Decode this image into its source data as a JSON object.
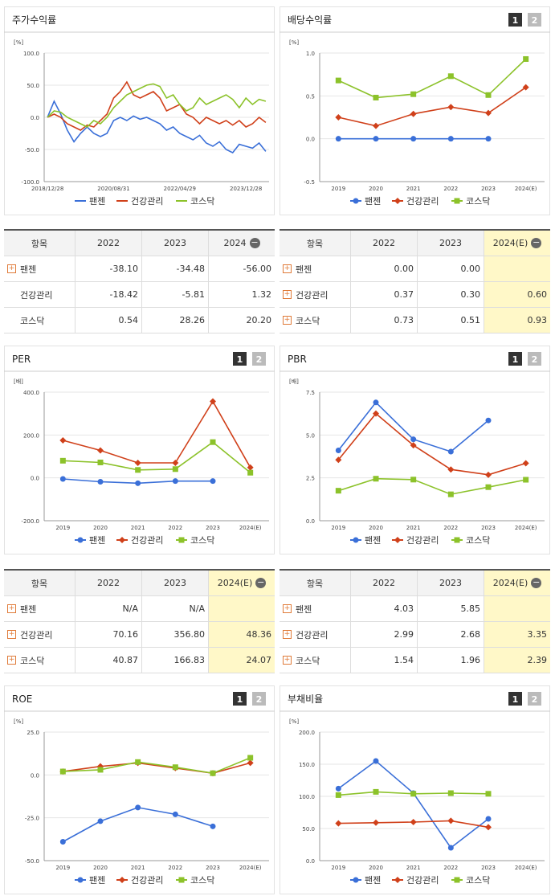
{
  "tab_buttons": [
    "1",
    "2"
  ],
  "chart_data": [
    {
      "type": "line",
      "title": "주가수익률",
      "unit": "[%]",
      "show_tabs": false,
      "grid": true,
      "categories": [
        "2018/12/28",
        null,
        null,
        null,
        null,
        null,
        null,
        null,
        null,
        null,
        "2020/08/31",
        null,
        null,
        null,
        null,
        null,
        null,
        null,
        null,
        null,
        "2022/04/29",
        null,
        null,
        null,
        null,
        null,
        null,
        null,
        null,
        null,
        "2023/12/28",
        null,
        null,
        null
      ],
      "ylim": [
        -100,
        100
      ],
      "yticks": [
        {
          "value": -100,
          "label": "-100.0"
        },
        {
          "value": -50,
          "label": "-50.0"
        },
        {
          "value": 0,
          "label": "0.0"
        },
        {
          "value": 50,
          "label": "50.0"
        },
        {
          "value": 100,
          "label": "100.0"
        }
      ],
      "series": [
        {
          "name": "팬젠",
          "color": "#3a6fd8",
          "values": [
            0,
            25,
            5,
            -20,
            -38,
            -25,
            -15,
            -25,
            -30,
            -25,
            -5,
            0,
            -5,
            2,
            -3,
            0,
            -5,
            -10,
            -20,
            -15,
            -25,
            -30,
            -35,
            -28,
            -40,
            -45,
            -38,
            -50,
            -55,
            -42,
            -45,
            -48,
            -40,
            -53
          ]
        },
        {
          "name": "건강관리",
          "color": "#d0401a",
          "values": [
            0,
            5,
            0,
            -10,
            -15,
            -20,
            -12,
            -15,
            -5,
            5,
            30,
            40,
            55,
            35,
            30,
            35,
            40,
            30,
            10,
            15,
            20,
            5,
            0,
            -10,
            0,
            -5,
            -10,
            -5,
            -12,
            -5,
            -15,
            -10,
            0,
            -8
          ]
        },
        {
          "name": "코스닥",
          "color": "#8cc22a",
          "values": [
            0,
            10,
            8,
            0,
            -5,
            -10,
            -15,
            -5,
            -10,
            0,
            15,
            25,
            35,
            40,
            45,
            50,
            52,
            48,
            30,
            35,
            20,
            10,
            15,
            30,
            20,
            25,
            30,
            35,
            28,
            15,
            30,
            20,
            28,
            25
          ]
        }
      ]
    },
    {
      "type": "line",
      "title": "배당수익률",
      "unit": "[%]",
      "show_tabs": true,
      "grid": true,
      "categories": [
        "2019",
        "2020",
        "2021",
        "2022",
        "2023",
        "2024(E)"
      ],
      "ylim": [
        -0.5,
        1.0
      ],
      "yticks": [
        {
          "value": -0.5,
          "label": "-0.5"
        },
        {
          "value": 0,
          "label": "0.0"
        },
        {
          "value": 0.5,
          "label": "0.5"
        },
        {
          "value": 1,
          "label": "1.0"
        }
      ],
      "series": [
        {
          "name": "팬젠",
          "color": "#3a6fd8",
          "marker": "circle",
          "values": [
            0,
            0,
            0,
            0,
            0,
            null
          ]
        },
        {
          "name": "건강관리",
          "color": "#d0401a",
          "marker": "diamond",
          "values": [
            0.25,
            0.15,
            0.29,
            0.37,
            0.3,
            0.6
          ]
        },
        {
          "name": "코스닥",
          "color": "#8cc22a",
          "marker": "square",
          "values": [
            0.68,
            0.48,
            0.52,
            0.73,
            0.51,
            0.93
          ]
        }
      ]
    },
    {
      "type": "line",
      "title": "PER",
      "unit": "[배]",
      "show_tabs": true,
      "grid": true,
      "categories": [
        "2019",
        "2020",
        "2021",
        "2022",
        "2023",
        "2024(E)"
      ],
      "ylim": [
        -200,
        400
      ],
      "yticks": [
        {
          "value": -200,
          "label": "-200.0"
        },
        {
          "value": 0,
          "label": "0.0"
        },
        {
          "value": 200,
          "label": "200.0"
        },
        {
          "value": 400,
          "label": "400.0"
        }
      ],
      "series": [
        {
          "name": "팬젠",
          "color": "#3a6fd8",
          "marker": "circle",
          "values": [
            -5,
            -18,
            -25,
            -15,
            -15,
            null
          ]
        },
        {
          "name": "건강관리",
          "color": "#d0401a",
          "marker": "diamond",
          "values": [
            175,
            128,
            70,
            70.16,
            356.8,
            48.36
          ]
        },
        {
          "name": "코스닥",
          "color": "#8cc22a",
          "marker": "square",
          "values": [
            80,
            72,
            37,
            40.87,
            166.83,
            24.07
          ]
        }
      ]
    },
    {
      "type": "line",
      "title": "PBR",
      "unit": "[배]",
      "show_tabs": true,
      "grid": true,
      "categories": [
        "2019",
        "2020",
        "2021",
        "2022",
        "2023",
        "2024(E)"
      ],
      "ylim": [
        0,
        7.5
      ],
      "yticks": [
        {
          "value": 0,
          "label": "0.0"
        },
        {
          "value": 2.5,
          "label": "2.5"
        },
        {
          "value": 5,
          "label": "5.0"
        },
        {
          "value": 7.5,
          "label": "7.5"
        }
      ],
      "series": [
        {
          "name": "팬젠",
          "color": "#3a6fd8",
          "marker": "circle",
          "values": [
            4.1,
            6.9,
            4.75,
            4.03,
            5.85,
            null
          ]
        },
        {
          "name": "건강관리",
          "color": "#d0401a",
          "marker": "diamond",
          "values": [
            3.55,
            6.25,
            4.4,
            2.99,
            2.68,
            3.35
          ]
        },
        {
          "name": "코스닥",
          "color": "#8cc22a",
          "marker": "square",
          "values": [
            1.75,
            2.45,
            2.4,
            1.54,
            1.96,
            2.39
          ]
        }
      ]
    },
    {
      "type": "line",
      "title": "ROE",
      "unit": "[%]",
      "show_tabs": true,
      "grid": true,
      "categories": [
        "2019",
        "2020",
        "2021",
        "2022",
        "2023",
        "2024(E)"
      ],
      "ylim": [
        -50,
        25
      ],
      "yticks": [
        {
          "value": -50,
          "label": "-50.0"
        },
        {
          "value": -25,
          "label": "-25.0"
        },
        {
          "value": 0,
          "label": "0.0"
        },
        {
          "value": 25,
          "label": "25.0"
        }
      ],
      "series": [
        {
          "name": "팬젠",
          "color": "#3a6fd8",
          "marker": "circle",
          "values": [
            -39,
            -27,
            -19,
            -23,
            -30,
            null
          ]
        },
        {
          "name": "건강관리",
          "color": "#d0401a",
          "marker": "diamond",
          "values": [
            2,
            5,
            7,
            4,
            1,
            7
          ]
        },
        {
          "name": "코스닥",
          "color": "#8cc22a",
          "marker": "square",
          "values": [
            2,
            3,
            7.5,
            4.5,
            1,
            10
          ]
        }
      ]
    },
    {
      "type": "line",
      "title": "부채비율",
      "unit": "[%]",
      "show_tabs": true,
      "grid": true,
      "categories": [
        "2019",
        "2020",
        "2021",
        "2022",
        "2023",
        "2024(E)"
      ],
      "ylim": [
        0,
        200
      ],
      "yticks": [
        {
          "value": 0,
          "label": "0.0"
        },
        {
          "value": 50,
          "label": "50.0"
        },
        {
          "value": 100,
          "label": "100.0"
        },
        {
          "value": 150,
          "label": "150.0"
        },
        {
          "value": 200,
          "label": "200.0"
        }
      ],
      "series": [
        {
          "name": "팬젠",
          "color": "#3a6fd8",
          "marker": "circle",
          "values": [
            112,
            155,
            105,
            20,
            65,
            null
          ]
        },
        {
          "name": "건강관리",
          "color": "#d0401a",
          "marker": "diamond",
          "values": [
            58,
            59,
            60,
            62,
            52,
            null
          ]
        },
        {
          "name": "코스닥",
          "color": "#8cc22a",
          "marker": "square",
          "values": [
            102,
            107,
            104,
            105,
            104,
            null
          ]
        }
      ]
    }
  ],
  "tables": [
    {
      "highlight_last_column": false,
      "columns": [
        "항목",
        "2022",
        "2023",
        "2024"
      ],
      "expandable": [
        true,
        false,
        false
      ],
      "rows": [
        [
          "팬젠",
          "-38.10",
          "-34.48",
          "-56.00"
        ],
        [
          "건강관리",
          "-18.42",
          "-5.81",
          "1.32"
        ],
        [
          "코스닥",
          "0.54",
          "28.26",
          "20.20"
        ]
      ]
    },
    {
      "highlight_last_column": true,
      "columns": [
        "항목",
        "2022",
        "2023",
        "2024(E)"
      ],
      "expandable": [
        true,
        true,
        true
      ],
      "rows": [
        [
          "팬젠",
          "0.00",
          "0.00",
          null
        ],
        [
          "건강관리",
          "0.37",
          "0.30",
          "0.60"
        ],
        [
          "코스닥",
          "0.73",
          "0.51",
          "0.93"
        ]
      ]
    },
    {
      "highlight_last_column": true,
      "columns": [
        "항목",
        "2022",
        "2023",
        "2024(E)"
      ],
      "expandable": [
        true,
        true,
        true
      ],
      "rows": [
        [
          "팬젠",
          "N/A",
          "N/A",
          null
        ],
        [
          "건강관리",
          "70.16",
          "356.80",
          "48.36"
        ],
        [
          "코스닥",
          "40.87",
          "166.83",
          "24.07"
        ]
      ]
    },
    {
      "highlight_last_column": true,
      "columns": [
        "항목",
        "2022",
        "2023",
        "2024(E)"
      ],
      "expandable": [
        true,
        true,
        true
      ],
      "rows": [
        [
          "팬젠",
          "4.03",
          "5.85",
          null
        ],
        [
          "건강관리",
          "2.99",
          "2.68",
          "3.35"
        ],
        [
          "코스닥",
          "1.54",
          "1.96",
          "2.39"
        ]
      ]
    }
  ]
}
